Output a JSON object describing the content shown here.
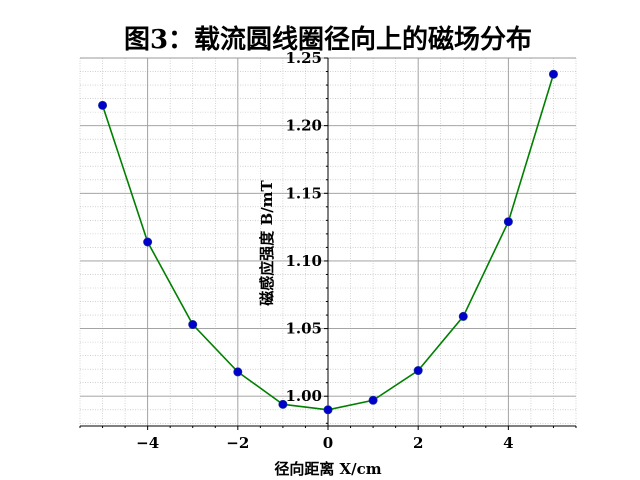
{
  "chart_data": {
    "type": "line",
    "title": "图3：载流圆线圈径向上的磁场分布",
    "xlabel": "径向距离 X/cm",
    "ylabel": "磁感应强度 B/mT",
    "xlim": [
      -5.5,
      5.5
    ],
    "ylim": [
      0.978,
      1.25
    ],
    "x_ticks": [
      -4,
      -2,
      0,
      2,
      4
    ],
    "x_tick_labels": [
      "−4",
      "−2",
      "0",
      "2",
      "4"
    ],
    "y_ticks": [
      1.0,
      1.05,
      1.1,
      1.15,
      1.2,
      1.25
    ],
    "y_tick_labels": [
      "1.00",
      "1.05",
      "1.10",
      "1.15",
      "1.20",
      "1.25"
    ],
    "grid": true,
    "line_color": "#008000",
    "marker_color": "#0000cc",
    "series": [
      {
        "x": [
          -5,
          -4,
          -3,
          -2,
          -1,
          0,
          1,
          2,
          3,
          4,
          5
        ],
        "values": [
          1.215,
          1.114,
          1.053,
          1.018,
          0.994,
          0.99,
          0.997,
          1.019,
          1.059,
          1.129,
          1.238
        ]
      }
    ]
  }
}
